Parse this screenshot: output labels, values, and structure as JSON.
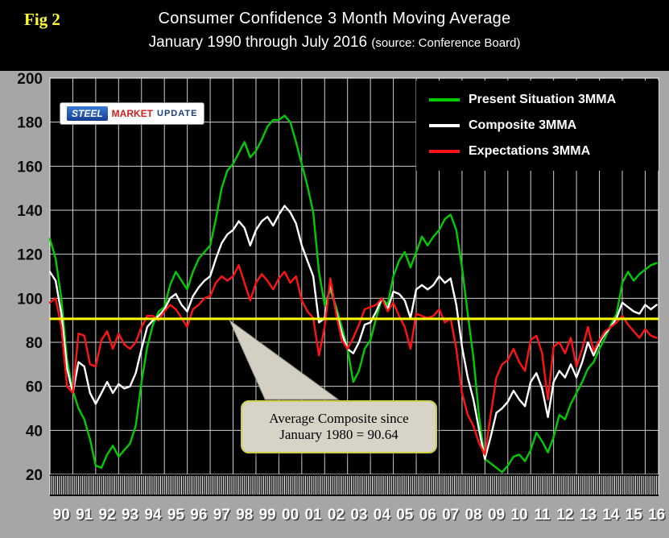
{
  "figure_label": "Fig 2",
  "title": {
    "line1": "Consumer Confidence 3 Month Moving Average",
    "line2_main": "January 1990 through July 2016",
    "line2_source": "(source: Conference Board)"
  },
  "logo": {
    "word1": "STEEL",
    "word2": "MARKET",
    "word3": "UPDATE"
  },
  "legend": [
    {
      "label": "Present Situation 3MMA",
      "color": "#00cc00"
    },
    {
      "label": "Composite 3MMA",
      "color": "#ffffff"
    },
    {
      "label": "Expectations 3MMA",
      "color": "#ff1414"
    }
  ],
  "annotation": {
    "line1": "Average Composite since",
    "line2": "January 1980 = 90.64",
    "value": 90.64,
    "pointer": {
      "tip_x": 1997.85,
      "tip_y": 90.0,
      "base_x1": 1999.4,
      "base_x2": 2002.6,
      "base_y": 54
    }
  },
  "chart_data": {
    "type": "line",
    "title": "Consumer Confidence 3 Month Moving Average, January 1990 through July 2016",
    "xlabel": "",
    "ylabel": "",
    "x_start": 1990,
    "x_end": 2016.583,
    "x_step": 0.25,
    "x_tick_labels": [
      "90",
      "91",
      "92",
      "93",
      "94",
      "95",
      "96",
      "97",
      "98",
      "99",
      "00",
      "01",
      "02",
      "03",
      "04",
      "05",
      "06",
      "07",
      "08",
      "09",
      "10",
      "11",
      "12",
      "13",
      "14",
      "15",
      "16"
    ],
    "y_ticks": [
      20,
      40,
      60,
      80,
      100,
      120,
      140,
      160,
      180,
      200
    ],
    "ylim": [
      20,
      200
    ],
    "grid": true,
    "grid_color": "#cfcfcf",
    "plot_bg": "#000000",
    "legend_position": "top-right",
    "average_line": {
      "value": 90.64,
      "color": "#ffff00",
      "label": "Average Composite since January 1980 = 90.64"
    },
    "series": [
      {
        "name": "Present Situation 3MMA",
        "color": "#00cc00",
        "values": [
          127,
          118,
          100,
          72,
          58,
          50,
          45,
          36,
          24,
          23,
          29,
          33,
          28,
          31,
          34,
          42,
          62,
          78,
          88,
          94,
          96,
          106,
          112,
          108,
          104,
          112,
          118,
          121,
          124,
          136,
          150,
          158,
          161,
          166,
          171,
          164,
          167,
          172,
          178,
          181,
          181,
          183,
          180,
          171,
          161,
          151,
          139,
          112,
          97,
          104,
          96,
          87,
          77,
          62,
          67,
          77,
          81,
          91,
          100,
          97,
          110,
          117,
          121,
          114,
          121,
          128,
          124,
          128,
          131,
          136,
          138,
          131,
          114,
          93,
          73,
          46,
          27,
          25,
          23,
          21,
          24,
          28,
          29,
          26,
          31,
          39,
          35,
          30,
          37,
          47,
          45,
          52,
          57,
          62,
          68,
          71,
          77,
          82,
          88,
          93,
          107,
          112,
          108,
          111,
          113,
          115,
          116
        ]
      },
      {
        "name": "Composite 3MMA",
        "color": "#ffffff",
        "values": [
          112,
          108,
          93,
          68,
          57,
          71,
          69,
          57,
          52,
          57,
          62,
          57,
          61,
          59,
          60,
          66,
          77,
          87,
          90,
          92,
          95,
          100,
          102,
          97,
          94,
          101,
          105,
          108,
          110,
          118,
          125,
          129,
          131,
          135,
          132,
          124,
          131,
          135,
          137,
          133,
          138,
          142,
          139,
          134,
          124,
          117,
          110,
          89,
          91,
          107,
          94,
          84,
          77,
          75,
          80,
          88,
          89,
          94,
          100,
          95,
          103,
          102,
          99,
          91,
          104,
          106,
          104,
          106,
          110,
          107,
          109,
          97,
          78,
          64,
          54,
          40,
          27,
          37,
          48,
          50,
          53,
          58,
          54,
          51,
          62,
          66,
          59,
          46,
          62,
          67,
          64,
          70,
          64,
          71,
          80,
          74,
          80,
          84,
          87,
          91,
          98,
          96,
          94,
          93,
          97,
          95,
          97
        ]
      },
      {
        "name": "Expectations 3MMA",
        "color": "#ff1414",
        "values": [
          98,
          100,
          87,
          60,
          57,
          84,
          83,
          70,
          69,
          81,
          85,
          77,
          84,
          79,
          77,
          80,
          87,
          92,
          92,
          90,
          94,
          97,
          95,
          91,
          87,
          95,
          97,
          100,
          101,
          107,
          110,
          108,
          110,
          115,
          107,
          99,
          107,
          111,
          108,
          104,
          109,
          112,
          107,
          110,
          99,
          94,
          91,
          74,
          87,
          109,
          93,
          81,
          77,
          82,
          88,
          95,
          96,
          97,
          100,
          94,
          98,
          92,
          87,
          77,
          93,
          92,
          91,
          92,
          95,
          89,
          91,
          77,
          57,
          47,
          42,
          34,
          29,
          47,
          64,
          70,
          72,
          77,
          71,
          67,
          81,
          83,
          75,
          54,
          78,
          80,
          75,
          82,
          69,
          77,
          87,
          76,
          81,
          85,
          87,
          89,
          92,
          88,
          85,
          82,
          86,
          83,
          82
        ]
      }
    ]
  }
}
